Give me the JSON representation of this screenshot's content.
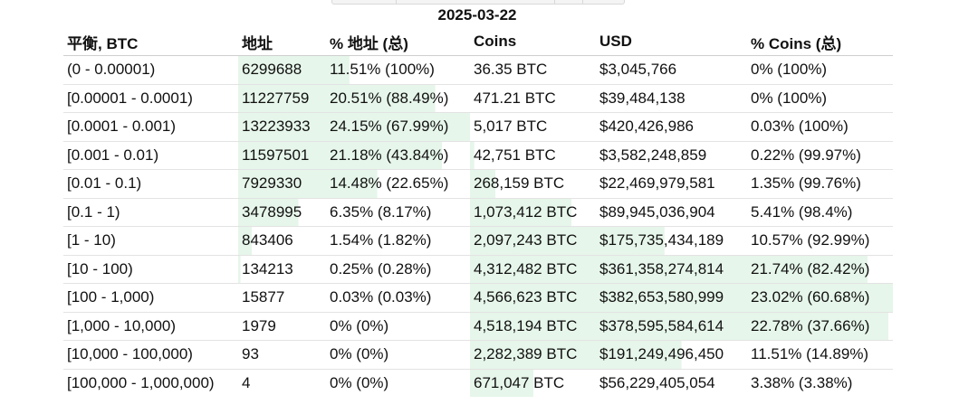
{
  "date": "2025-03-22",
  "bar_color": "#e6f6ea",
  "columns": [
    "平衡, BTC",
    "地址",
    "% 地址 (总)",
    "Coins",
    "USD",
    "% Coins (总)"
  ],
  "rows": [
    {
      "range": "(0 - 0.00001)",
      "addresses": "6299688",
      "addr_pct": "11.51% (100%)",
      "coins": "36.35 BTC",
      "usd": "$3,045,766",
      "coins_pct": "0% (100%)",
      "addr_share": 0.48,
      "coins_share": 0.0
    },
    {
      "range": "[0.00001 - 0.0001)",
      "addresses": "11227759",
      "addr_pct": "20.51% (88.49%)",
      "coins": "471.21 BTC",
      "usd": "$39,484,138",
      "coins_pct": "0% (100%)",
      "addr_share": 0.85,
      "coins_share": 0.0
    },
    {
      "range": "[0.0001 - 0.001)",
      "addresses": "13223933",
      "addr_pct": "24.15% (67.99%)",
      "coins": "5,017 BTC",
      "usd": "$420,426,986",
      "coins_pct": "0.03% (100%)",
      "addr_share": 1.0,
      "coins_share": 0.0
    },
    {
      "range": "[0.001 - 0.01)",
      "addresses": "11597501",
      "addr_pct": "21.18% (43.84%)",
      "coins": "42,751 BTC",
      "usd": "$3,582,248,859",
      "coins_pct": "0.22% (99.97%)",
      "addr_share": 0.88,
      "coins_share": 0.01
    },
    {
      "range": "[0.01 - 0.1)",
      "addresses": "7929330",
      "addr_pct": "14.48% (22.65%)",
      "coins": "268,159 BTC",
      "usd": "$22,469,979,581",
      "coins_pct": "1.35% (99.76%)",
      "addr_share": 0.6,
      "coins_share": 0.06
    },
    {
      "range": "[0.1 - 1)",
      "addresses": "3478995",
      "addr_pct": "6.35% (8.17%)",
      "coins": "1,073,412 BTC",
      "usd": "$89,945,036,904",
      "coins_pct": "5.41% (98.4%)",
      "addr_share": 0.26,
      "coins_share": 0.24
    },
    {
      "range": "[1 - 10)",
      "addresses": "843406",
      "addr_pct": "1.54% (1.82%)",
      "coins": "2,097,243 BTC",
      "usd": "$175,735,434,189",
      "coins_pct": "10.57% (92.99%)",
      "addr_share": 0.06,
      "coins_share": 0.46
    },
    {
      "range": "[10 - 100)",
      "addresses": "134213",
      "addr_pct": "0.25% (0.28%)",
      "coins": "4,312,482 BTC",
      "usd": "$361,358,274,814",
      "coins_pct": "21.74% (82.42%)",
      "addr_share": 0.01,
      "coins_share": 0.94
    },
    {
      "range": "[100 - 1,000)",
      "addresses": "15877",
      "addr_pct": "0.03% (0.03%)",
      "coins": "4,566,623 BTC",
      "usd": "$382,653,580,999",
      "coins_pct": "23.02% (60.68%)",
      "addr_share": 0.0,
      "coins_share": 1.0
    },
    {
      "range": "[1,000 - 10,000)",
      "addresses": "1979",
      "addr_pct": "0% (0%)",
      "coins": "4,518,194 BTC",
      "usd": "$378,595,584,614",
      "coins_pct": "22.78% (37.66%)",
      "addr_share": 0.0,
      "coins_share": 0.99
    },
    {
      "range": "[10,000 - 100,000)",
      "addresses": "93",
      "addr_pct": "0% (0%)",
      "coins": "2,282,389 BTC",
      "usd": "$191,249,496,450",
      "coins_pct": "11.51% (14.89%)",
      "addr_share": 0.0,
      "coins_share": 0.5
    },
    {
      "range": "[100,000 - 1,000,000)",
      "addresses": "4",
      "addr_pct": "0% (0%)",
      "coins": "671,047 BTC",
      "usd": "$56,229,405,054",
      "coins_pct": "3.38% (3.38%)",
      "addr_share": 0.0,
      "coins_share": 0.15
    }
  ]
}
